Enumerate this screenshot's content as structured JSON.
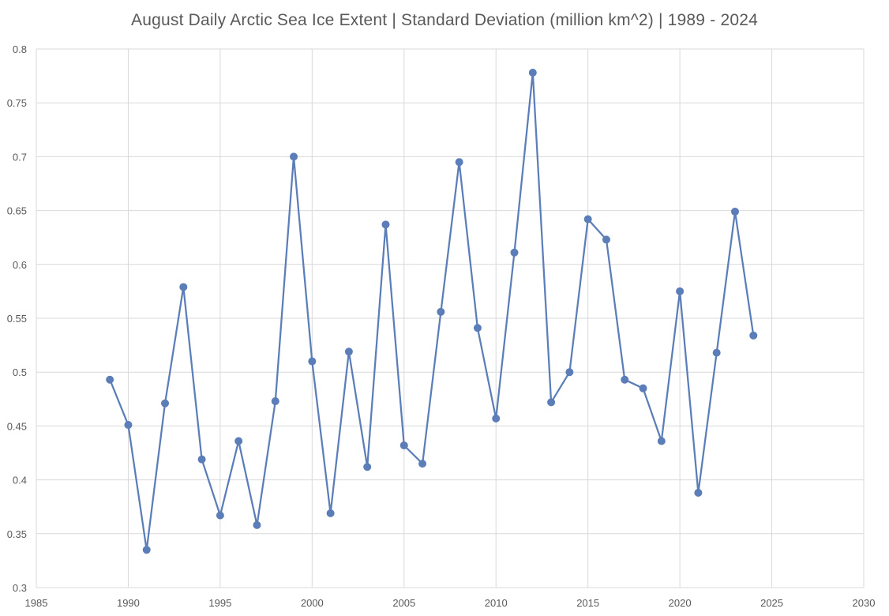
{
  "chart_data": {
    "type": "line",
    "title": "August Daily Arctic Sea Ice Extent | Standard Deviation (million km^2) | 1989 - 2024",
    "xlabel": "",
    "ylabel": "",
    "xlim": [
      1985,
      2030
    ],
    "ylim": [
      0.3,
      0.8
    ],
    "x_ticks": [
      "1985",
      "1990",
      "1995",
      "2000",
      "2005",
      "2010",
      "2015",
      "2020",
      "2025",
      "2030"
    ],
    "y_ticks": [
      "0.3",
      "0.35",
      "0.4",
      "0.45",
      "0.5",
      "0.55",
      "0.6",
      "0.65",
      "0.7",
      "0.75",
      "0.8"
    ],
    "grid": true,
    "legend": "none",
    "series_color": "#5b7db8",
    "grid_color": "#d9d9d9",
    "series": [
      {
        "x": [
          1989,
          1990,
          1991,
          1992,
          1993,
          1994,
          1995,
          1996,
          1997,
          1998,
          1999,
          2000,
          2001,
          2002,
          2003,
          2004,
          2005,
          2006,
          2007,
          2008,
          2009,
          2010,
          2011,
          2012,
          2013,
          2014,
          2015,
          2016,
          2017,
          2018,
          2019,
          2020,
          2021,
          2022,
          2023,
          2024
        ],
        "values": [
          0.493,
          0.451,
          0.335,
          0.471,
          0.579,
          0.419,
          0.367,
          0.436,
          0.358,
          0.473,
          0.7,
          0.51,
          0.369,
          0.519,
          0.412,
          0.637,
          0.432,
          0.415,
          0.556,
          0.695,
          0.541,
          0.457,
          0.611,
          0.778,
          0.472,
          0.5,
          0.642,
          0.623,
          0.493,
          0.485,
          0.436,
          0.575,
          0.388,
          0.518,
          0.649,
          0.534
        ]
      }
    ]
  }
}
